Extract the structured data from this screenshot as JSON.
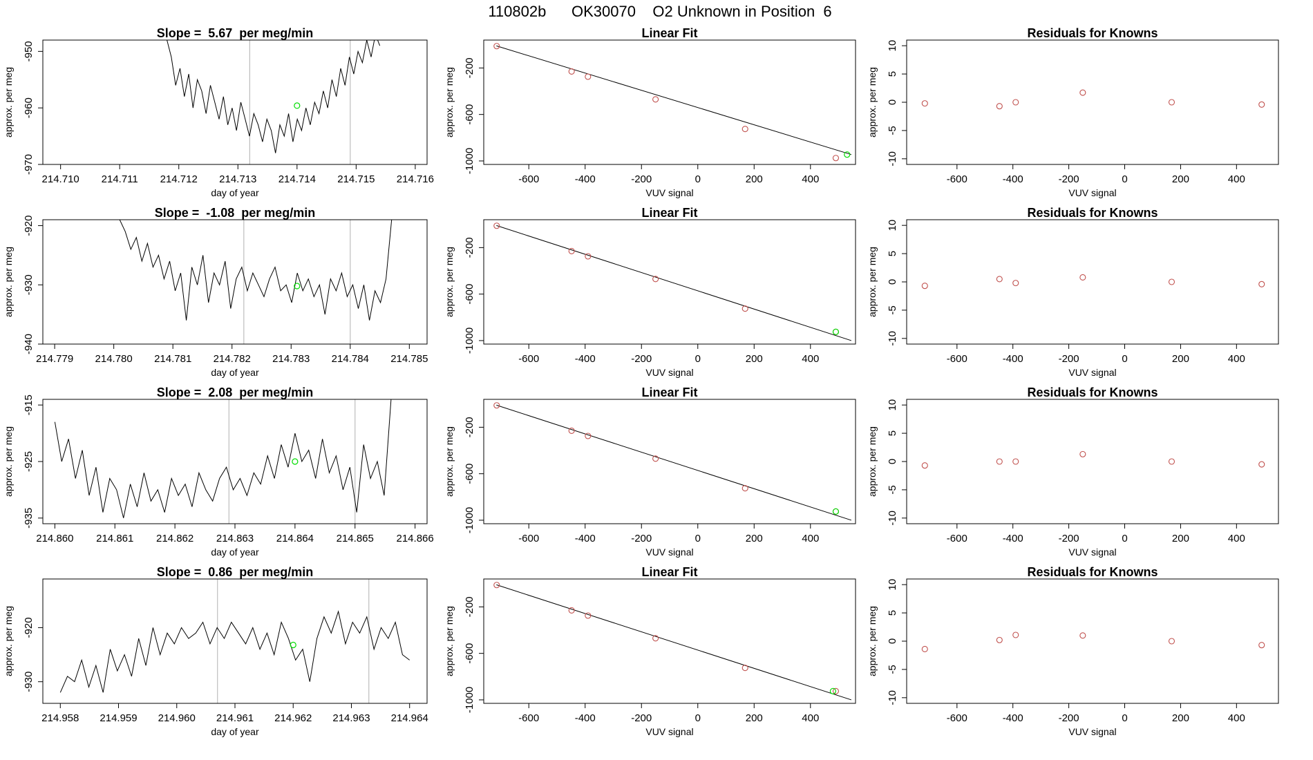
{
  "page_title": "110802b      OK30070    O2 Unknown in Position  6",
  "colors": {
    "line": "#000000",
    "known_point": "#c0504d",
    "unknown_point": "#00dd00",
    "grid_vline": "#bdbdbd"
  },
  "chart_data": [
    {
      "type": "line",
      "kind": "timeseries",
      "row": 0,
      "title": "Slope =  5.67  per meg/min",
      "xlabel": "day of year",
      "ylabel": "approx. per meg",
      "xlim": [
        214.7097,
        214.7162
      ],
      "ylim": [
        -970,
        -948
      ],
      "xticks": [
        214.71,
        214.711,
        214.712,
        214.713,
        214.714,
        214.715,
        214.716
      ],
      "xtick_labels": [
        "214.710",
        "214.711",
        "214.712",
        "214.713",
        "214.714",
        "214.715",
        "214.716"
      ],
      "yticks": [
        -970,
        -960,
        -950
      ],
      "ytick_labels": [
        "-970",
        "-960",
        "-950"
      ],
      "vlines": [
        214.7132,
        214.7149
      ],
      "unknown_point": {
        "x": 214.714,
        "y": -959.6
      },
      "series": {
        "x_start": 214.7118,
        "x_end": 214.7154,
        "y": [
          -948,
          -951,
          -956,
          -953,
          -958,
          -954,
          -960,
          -955,
          -957,
          -961,
          -956,
          -959,
          -962,
          -958,
          -963,
          -960,
          -964,
          -959,
          -962,
          -965,
          -961,
          -963,
          -966,
          -962,
          -964,
          -968,
          -963,
          -965,
          -961,
          -966,
          -962,
          -964,
          -960,
          -963,
          -959,
          -961,
          -957,
          -960,
          -955,
          -958,
          -953,
          -956,
          -951,
          -954,
          -950,
          -952,
          -948,
          -951,
          -947,
          -949
        ]
      }
    },
    {
      "type": "scatter",
      "kind": "fit",
      "row": 0,
      "title": "Linear Fit",
      "xlabel": "VUV signal",
      "ylabel": "approx. per meg",
      "xlim": [
        -760,
        560
      ],
      "ylim": [
        -1030,
        40
      ],
      "xticks": [
        -600,
        -400,
        -200,
        0,
        200,
        400
      ],
      "xtick_labels": [
        "-600",
        "-400",
        "-200",
        "0",
        "200",
        "400"
      ],
      "yticks": [
        -1000,
        -600,
        -200
      ],
      "ytick_labels": [
        "-1000",
        "-600",
        "-200"
      ],
      "fit_line": {
        "x0": -715,
        "y0": -10,
        "x1": 545,
        "y1": -945
      },
      "known_points": [
        [
          -714,
          -12
        ],
        [
          -448,
          -230
        ],
        [
          -390,
          -275
        ],
        [
          -150,
          -470
        ],
        [
          168,
          -725
        ],
        [
          490,
          -975
        ]
      ],
      "unknown_point": [
        530,
        -945
      ]
    },
    {
      "type": "scatter",
      "kind": "residuals",
      "row": 0,
      "title": "Residuals for Knowns",
      "xlabel": "VUV signal",
      "ylabel": "approx. per meg",
      "xlim": [
        -780,
        550
      ],
      "ylim": [
        -11,
        11
      ],
      "xticks": [
        -600,
        -400,
        -200,
        0,
        200,
        400
      ],
      "xtick_labels": [
        "-600",
        "-400",
        "-200",
        "0",
        "200",
        "400"
      ],
      "yticks": [
        -10,
        -5,
        0,
        5,
        10
      ],
      "ytick_labels": [
        "-10",
        "-5",
        "0",
        "5",
        "10"
      ],
      "known_points": [
        [
          -715,
          -0.2
        ],
        [
          -448,
          -0.7
        ],
        [
          -390,
          0
        ],
        [
          -150,
          1.7
        ],
        [
          168,
          0
        ],
        [
          490,
          -0.4
        ]
      ]
    },
    {
      "type": "line",
      "kind": "timeseries",
      "row": 1,
      "title": "Slope =  -1.08  per meg/min",
      "xlabel": "day of year",
      "ylabel": "approx. per meg",
      "xlim": [
        214.7788,
        214.7853
      ],
      "ylim": [
        -940,
        -919
      ],
      "xticks": [
        214.779,
        214.78,
        214.781,
        214.782,
        214.783,
        214.784,
        214.785
      ],
      "xtick_labels": [
        "214.779",
        "214.780",
        "214.781",
        "214.782",
        "214.783",
        "214.784",
        "214.785"
      ],
      "yticks": [
        -940,
        -930,
        -920
      ],
      "ytick_labels": [
        "-940",
        "-930",
        "-920"
      ],
      "vlines": [
        214.7822,
        214.784
      ],
      "unknown_point": {
        "x": 214.7831,
        "y": -930.2
      },
      "series": {
        "x_start": 214.7801,
        "x_end": 214.7847,
        "y": [
          -919,
          -921,
          -924,
          -922,
          -926,
          -923,
          -927,
          -925,
          -929,
          -926,
          -931,
          -928,
          -936,
          -927,
          -930,
          -925,
          -933,
          -928,
          -930,
          -926,
          -934,
          -929,
          -927,
          -931,
          -928,
          -930,
          -932,
          -929,
          -927,
          -931,
          -930,
          -933,
          -928,
          -931,
          -929,
          -932,
          -930,
          -935,
          -929,
          -931,
          -928,
          -932,
          -930,
          -934,
          -930,
          -936,
          -931,
          -933,
          -929,
          -919
        ]
      }
    },
    {
      "type": "scatter",
      "kind": "fit",
      "row": 1,
      "title": "Linear Fit",
      "xlabel": "VUV signal",
      "ylabel": "approx. per meg",
      "xlim": [
        -760,
        560
      ],
      "ylim": [
        -1030,
        40
      ],
      "xticks": [
        -600,
        -400,
        -200,
        0,
        200,
        400
      ],
      "xtick_labels": [
        "-600",
        "-400",
        "-200",
        "0",
        "200",
        "400"
      ],
      "yticks": [
        -1000,
        -600,
        -200
      ],
      "ytick_labels": [
        "-1000",
        "-600",
        "-200"
      ],
      "fit_line": {
        "x0": -715,
        "y0": -10,
        "x1": 545,
        "y1": -1000
      },
      "known_points": [
        [
          -714,
          -12
        ],
        [
          -448,
          -230
        ],
        [
          -390,
          -275
        ],
        [
          -150,
          -470
        ],
        [
          168,
          -725
        ],
        [
          490,
          -925
        ]
      ],
      "unknown_point": [
        490,
        -925
      ]
    },
    {
      "type": "scatter",
      "kind": "residuals",
      "row": 1,
      "title": "Residuals for Knowns",
      "xlabel": "VUV signal",
      "ylabel": "approx. per meg",
      "xlim": [
        -780,
        550
      ],
      "ylim": [
        -11,
        11
      ],
      "xticks": [
        -600,
        -400,
        -200,
        0,
        200,
        400
      ],
      "xtick_labels": [
        "-600",
        "-400",
        "-200",
        "0",
        "200",
        "400"
      ],
      "yticks": [
        -10,
        -5,
        0,
        5,
        10
      ],
      "ytick_labels": [
        "-10",
        "-5",
        "0",
        "5",
        "10"
      ],
      "known_points": [
        [
          -715,
          -0.7
        ],
        [
          -448,
          0.5
        ],
        [
          -390,
          -0.2
        ],
        [
          -150,
          0.8
        ],
        [
          168,
          0
        ],
        [
          490,
          -0.4
        ]
      ]
    },
    {
      "type": "line",
      "kind": "timeseries",
      "row": 2,
      "title": "Slope =  2.08  per meg/min",
      "xlabel": "day of year",
      "ylabel": "approx. per meg",
      "xlim": [
        214.8598,
        214.8662
      ],
      "ylim": [
        -936,
        -914
      ],
      "xticks": [
        214.86,
        214.861,
        214.862,
        214.863,
        214.864,
        214.865,
        214.866
      ],
      "xtick_labels": [
        "214.860",
        "214.861",
        "214.862",
        "214.863",
        "214.864",
        "214.865",
        "214.866"
      ],
      "yticks": [
        -935,
        -925,
        -915
      ],
      "ytick_labels": [
        "-935",
        "-925",
        "-915"
      ],
      "vlines": [
        214.8629,
        214.865
      ],
      "unknown_point": {
        "x": 214.864,
        "y": -925.0
      },
      "series": {
        "x_start": 214.86,
        "x_end": 214.8656,
        "y": [
          -918,
          -925,
          -921,
          -928,
          -923,
          -931,
          -926,
          -934,
          -928,
          -930,
          -935,
          -929,
          -933,
          -927,
          -932,
          -930,
          -934,
          -928,
          -931,
          -929,
          -933,
          -927,
          -930,
          -932,
          -928,
          -926,
          -930,
          -928,
          -931,
          -927,
          -929,
          -924,
          -928,
          -922,
          -926,
          -920,
          -925,
          -923,
          -928,
          -921,
          -927,
          -924,
          -930,
          -926,
          -934,
          -922,
          -928,
          -925,
          -931,
          -914
        ]
      }
    },
    {
      "type": "scatter",
      "kind": "fit",
      "row": 2,
      "title": "Linear Fit",
      "xlabel": "VUV signal",
      "ylabel": "approx. per meg",
      "xlim": [
        -760,
        560
      ],
      "ylim": [
        -1030,
        40
      ],
      "xticks": [
        -600,
        -400,
        -200,
        0,
        200,
        400
      ],
      "xtick_labels": [
        "-600",
        "-400",
        "-200",
        "0",
        "200",
        "400"
      ],
      "yticks": [
        -1000,
        -600,
        -200
      ],
      "ytick_labels": [
        "-1000",
        "-600",
        "-200"
      ],
      "fit_line": {
        "x0": -715,
        "y0": -10,
        "x1": 545,
        "y1": -1000
      },
      "known_points": [
        [
          -714,
          -12
        ],
        [
          -448,
          -230
        ],
        [
          -390,
          -275
        ],
        [
          -150,
          -470
        ],
        [
          168,
          -725
        ],
        [
          490,
          -925
        ]
      ],
      "unknown_point": [
        490,
        -925
      ]
    },
    {
      "type": "scatter",
      "kind": "residuals",
      "row": 2,
      "title": "Residuals for Knowns",
      "xlabel": "VUV signal",
      "ylabel": "approx. per meg",
      "xlim": [
        -780,
        550
      ],
      "ylim": [
        -11,
        11
      ],
      "xticks": [
        -600,
        -400,
        -200,
        0,
        200,
        400
      ],
      "xtick_labels": [
        "-600",
        "-400",
        "-200",
        "0",
        "200",
        "400"
      ],
      "yticks": [
        -10,
        -5,
        0,
        5,
        10
      ],
      "ytick_labels": [
        "-10",
        "-5",
        "0",
        "5",
        "10"
      ],
      "known_points": [
        [
          -715,
          -0.7
        ],
        [
          -448,
          0
        ],
        [
          -390,
          0
        ],
        [
          -150,
          1.3
        ],
        [
          168,
          0
        ],
        [
          490,
          -0.5
        ]
      ]
    },
    {
      "type": "line",
      "kind": "timeseries",
      "row": 3,
      "title": "Slope =  0.86  per meg/min",
      "xlabel": "day of year",
      "ylabel": "approx. per meg",
      "xlim": [
        214.9577,
        214.9643
      ],
      "ylim": [
        -934,
        -911
      ],
      "xticks": [
        214.958,
        214.959,
        214.96,
        214.961,
        214.962,
        214.963,
        214.964
      ],
      "xtick_labels": [
        "214.958",
        "214.959",
        "214.960",
        "214.961",
        "214.962",
        "214.963",
        "214.964"
      ],
      "yticks": [
        -930,
        -920
      ],
      "ytick_labels": [
        "-930",
        "-920"
      ],
      "vlines": [
        214.9607,
        214.9633
      ],
      "unknown_point": {
        "x": 214.962,
        "y": -923.2
      },
      "series": {
        "x_start": 214.958,
        "x_end": 214.964,
        "y": [
          -932,
          -929,
          -930,
          -926,
          -931,
          -927,
          -932,
          -924,
          -928,
          -925,
          -929,
          -922,
          -927,
          -920,
          -925,
          -921,
          -923,
          -920,
          -922,
          -921,
          -919,
          -923,
          -920,
          -922,
          -919,
          -921,
          -923,
          -920,
          -924,
          -921,
          -925,
          -919,
          -922,
          -926,
          -924,
          -930,
          -922,
          -918,
          -921,
          -917,
          -923,
          -919,
          -921,
          -918,
          -924,
          -920,
          -922,
          -919,
          -925,
          -926
        ]
      }
    },
    {
      "type": "scatter",
      "kind": "fit",
      "row": 3,
      "title": "Linear Fit",
      "xlabel": "VUV signal",
      "ylabel": "approx. per meg",
      "xlim": [
        -760,
        560
      ],
      "ylim": [
        -1030,
        40
      ],
      "xticks": [
        -600,
        -400,
        -200,
        0,
        200,
        400
      ],
      "xtick_labels": [
        "-600",
        "-400",
        "-200",
        "0",
        "200",
        "400"
      ],
      "yticks": [
        -1000,
        -600,
        -200
      ],
      "ytick_labels": [
        "-1000",
        "-600",
        "-200"
      ],
      "fit_line": {
        "x0": -715,
        "y0": -10,
        "x1": 545,
        "y1": -1000
      },
      "known_points": [
        [
          -714,
          -12
        ],
        [
          -448,
          -230
        ],
        [
          -390,
          -275
        ],
        [
          -150,
          -470
        ],
        [
          168,
          -725
        ],
        [
          490,
          -925
        ]
      ],
      "unknown_point": [
        480,
        -925
      ]
    },
    {
      "type": "scatter",
      "kind": "residuals",
      "row": 3,
      "title": "Residuals for Knowns",
      "xlabel": "VUV signal",
      "ylabel": "approx. per meg",
      "xlim": [
        -780,
        550
      ],
      "ylim": [
        -11,
        11
      ],
      "xticks": [
        -600,
        -400,
        -200,
        0,
        200,
        400
      ],
      "xtick_labels": [
        "-600",
        "-400",
        "-200",
        "0",
        "200",
        "400"
      ],
      "yticks": [
        -10,
        -5,
        0,
        5,
        10
      ],
      "ytick_labels": [
        "-10",
        "-5",
        "0",
        "5",
        "10"
      ],
      "known_points": [
        [
          -715,
          -1.4
        ],
        [
          -448,
          0.2
        ],
        [
          -390,
          1.1
        ],
        [
          -150,
          1.0
        ],
        [
          168,
          0
        ],
        [
          490,
          -0.7
        ]
      ]
    }
  ]
}
